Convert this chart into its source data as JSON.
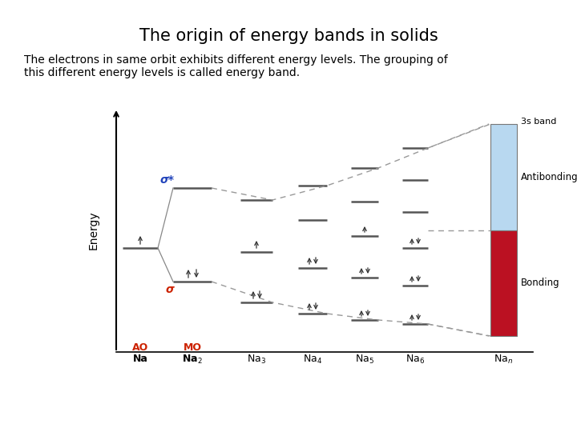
{
  "title": "The origin of energy bands in solids",
  "subtitle_line1": "The electrons in same orbit exhibits different energy levels. The grouping of",
  "subtitle_line2": "this different energy levels is called energy band.",
  "title_fontsize": 15,
  "subtitle_fontsize": 10,
  "bg_color": "#ffffff",
  "energy_label": "Energy",
  "ao_label": "AO",
  "mo_label": "MO",
  "sigma_star_label": "σ*",
  "sigma_label": "σ",
  "antibonding_label": "Antibonding",
  "bonding_label": "Bonding",
  "band_label": "3s band",
  "line_color": "#555555",
  "dashed_color": "#999999",
  "red_color": "#cc2200",
  "blue_color": "#2244bb",
  "bar_blue": "#b8d8f0",
  "bar_red": "#bb1122",
  "arrow_color": "#333333",
  "level_color": "#555555",
  "connect_color": "#888888"
}
